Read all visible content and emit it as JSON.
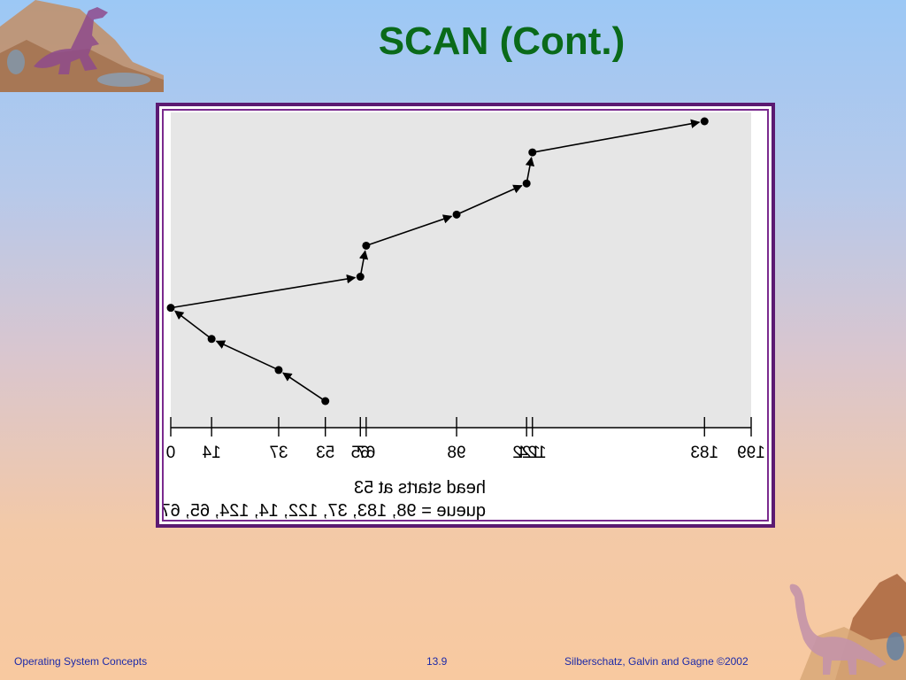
{
  "slide": {
    "title": "SCAN (Cont.)",
    "footer_left": "Operating System Concepts",
    "footer_center": "13.9",
    "footer_right": "Silberschatz, Galvin and  Gagne ©2002"
  },
  "diagram": {
    "tick_labels": [
      "0",
      "14",
      "37",
      "53",
      "65",
      "67",
      "98",
      "122",
      "124",
      "183",
      "199"
    ],
    "caption_line1": "queue = 98, 183, 37, 122, 14, 124, 65, 67",
    "caption_line2": "head starts at 53",
    "head_path": [
      53,
      37,
      14,
      0,
      65,
      67,
      98,
      122,
      124,
      183
    ],
    "cylinder_range": [
      0,
      199
    ],
    "mirrored": true
  },
  "decorations": {
    "top_left": "t-rex-dinosaur-icon",
    "bottom_right": "brachiosaurus-dinosaur-icon"
  }
}
